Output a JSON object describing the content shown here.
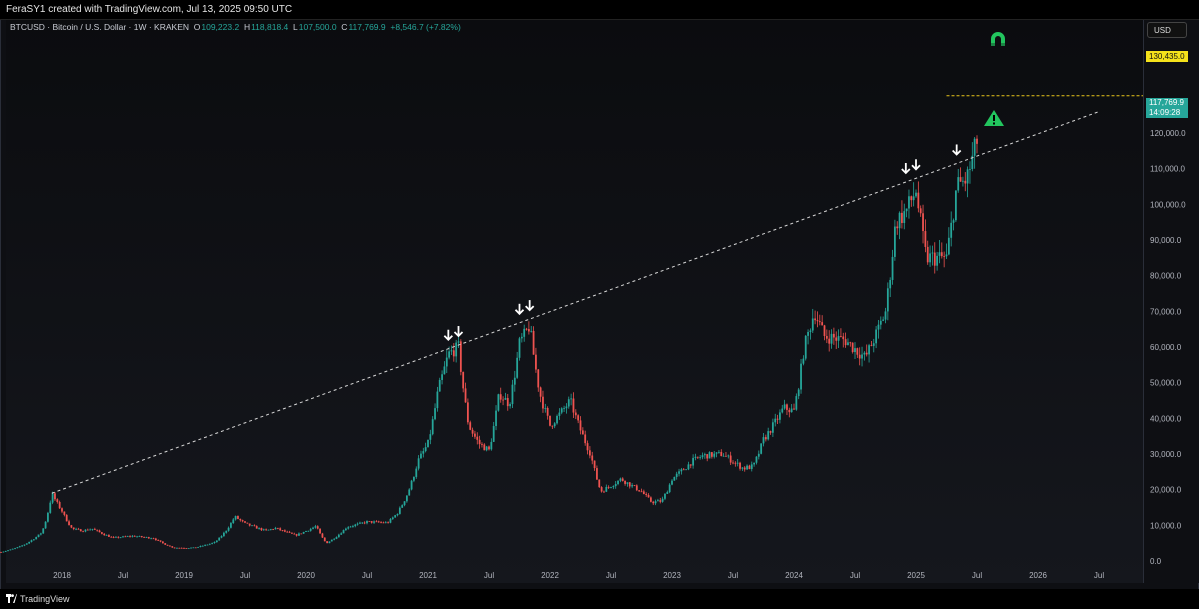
{
  "header": {
    "caption": "FeraSY1 created with TradingView.com, Jul 13, 2025 09:50 UTC"
  },
  "symbol": {
    "title": "BTCUSD · Bitcoin / U.S. Dollar · 1W · KRAKEN",
    "o_label": "O",
    "o_value": "109,223.2",
    "h_label": "H",
    "h_value": "118,818.4",
    "l_label": "L",
    "l_value": "107,500.0",
    "c_label": "C",
    "c_value": "117,769.9",
    "change": "+8,546.7 (+7.82%)"
  },
  "currency_button": "USD",
  "price_labels": {
    "target": "130,435.0",
    "last_price": "117,769.9",
    "countdown": "14:09:28"
  },
  "footer": {
    "brand": "TradingView"
  },
  "colors": {
    "up": "#26a69a",
    "down": "#ef5350",
    "target_line": "#e8c51a",
    "trendline": "#d8d8d8",
    "arrow": "#ffffff",
    "alert_green": "#22c55e"
  },
  "icons": [
    "magnet-icon",
    "warning-triangle-icon",
    "down-arrow-icon",
    "tradingview-logo-icon"
  ],
  "chart_data": {
    "type": "candlestick",
    "interval": "1W",
    "ylim": [
      0,
      130000
    ],
    "y_ticks": [
      {
        "value": 0,
        "label": "0.0"
      },
      {
        "value": 10000,
        "label": "10,000.0"
      },
      {
        "value": 20000,
        "label": "20,000.0"
      },
      {
        "value": 30000,
        "label": "30,000.0"
      },
      {
        "value": 40000,
        "label": "40,000.0"
      },
      {
        "value": 50000,
        "label": "50,000.0"
      },
      {
        "value": 60000,
        "label": "60,000.0"
      },
      {
        "value": 70000,
        "label": "70,000.0"
      },
      {
        "value": 80000,
        "label": "80,000.0"
      },
      {
        "value": 90000,
        "label": "90,000.0"
      },
      {
        "value": 100000,
        "label": "100,000.0"
      },
      {
        "value": 110000,
        "label": "110,000.0"
      },
      {
        "value": 120000,
        "label": "120,000.0"
      }
    ],
    "x_ticks": [
      {
        "date": "2018-01",
        "label": "2018"
      },
      {
        "date": "2018-07",
        "label": "Jul"
      },
      {
        "date": "2019-01",
        "label": "2019"
      },
      {
        "date": "2019-07",
        "label": "Jul"
      },
      {
        "date": "2020-01",
        "label": "2020"
      },
      {
        "date": "2020-07",
        "label": "Jul"
      },
      {
        "date": "2021-01",
        "label": "2021"
      },
      {
        "date": "2021-07",
        "label": "Jul"
      },
      {
        "date": "2022-01",
        "label": "2022"
      },
      {
        "date": "2022-07",
        "label": "Jul"
      },
      {
        "date": "2023-01",
        "label": "2023"
      },
      {
        "date": "2023-07",
        "label": "Jul"
      },
      {
        "date": "2024-01",
        "label": "2024"
      },
      {
        "date": "2024-07",
        "label": "Jul"
      },
      {
        "date": "2025-01",
        "label": "2025"
      },
      {
        "date": "2025-07",
        "label": "Jul"
      },
      {
        "date": "2026-01",
        "label": "2026"
      },
      {
        "date": "2026-07",
        "label": "Jul"
      }
    ],
    "x_range": [
      "2017-07",
      "2026-12"
    ],
    "price_path": [
      [
        "2017-07",
        2500
      ],
      [
        "2017-09",
        4200
      ],
      [
        "2017-11",
        8000
      ],
      [
        "2017-12",
        19000
      ],
      [
        "2018-01",
        14000
      ],
      [
        "2018-02",
        9000
      ],
      [
        "2018-03",
        8500
      ],
      [
        "2018-04",
        9000
      ],
      [
        "2018-06",
        6500
      ],
      [
        "2018-08",
        7000
      ],
      [
        "2018-10",
        6400
      ],
      [
        "2018-12",
        3700
      ],
      [
        "2019-02",
        3700
      ],
      [
        "2019-04",
        5200
      ],
      [
        "2019-06",
        12500
      ],
      [
        "2019-07",
        10500
      ],
      [
        "2019-09",
        8500
      ],
      [
        "2019-10",
        9200
      ],
      [
        "2019-12",
        7200
      ],
      [
        "2020-02",
        9800
      ],
      [
        "2020-03",
        5000
      ],
      [
        "2020-05",
        9500
      ],
      [
        "2020-07",
        11000
      ],
      [
        "2020-09",
        10700
      ],
      [
        "2020-10",
        13500
      ],
      [
        "2020-11",
        19000
      ],
      [
        "2020-12",
        28000
      ],
      [
        "2021-01",
        33000
      ],
      [
        "2021-02",
        48000
      ],
      [
        "2021-03",
        58000
      ],
      [
        "2021-04",
        60000
      ],
      [
        "2021-05",
        38000
      ],
      [
        "2021-06",
        33000
      ],
      [
        "2021-07",
        31000
      ],
      [
        "2021-08",
        47000
      ],
      [
        "2021-09",
        44000
      ],
      [
        "2021-10",
        61000
      ],
      [
        "2021-11",
        66000
      ],
      [
        "2021-12",
        47000
      ],
      [
        "2022-01",
        38000
      ],
      [
        "2022-03",
        45000
      ],
      [
        "2022-05",
        30000
      ],
      [
        "2022-06",
        19500
      ],
      [
        "2022-08",
        23000
      ],
      [
        "2022-10",
        19500
      ],
      [
        "2022-11",
        16500
      ],
      [
        "2022-12",
        16800
      ],
      [
        "2023-01",
        23000
      ],
      [
        "2023-03",
        28000
      ],
      [
        "2023-04",
        29500
      ],
      [
        "2023-06",
        30000
      ],
      [
        "2023-08",
        26000
      ],
      [
        "2023-09",
        26500
      ],
      [
        "2023-10",
        34000
      ],
      [
        "2023-12",
        43000
      ],
      [
        "2024-01",
        42000
      ],
      [
        "2024-02",
        60000
      ],
      [
        "2024-03",
        70000
      ],
      [
        "2024-04",
        63000
      ],
      [
        "2024-06",
        62000
      ],
      [
        "2024-08",
        57000
      ],
      [
        "2024-09",
        63000
      ],
      [
        "2024-10",
        70000
      ],
      [
        "2024-11",
        95000
      ],
      [
        "2024-12",
        98000
      ],
      [
        "2025-01",
        104000
      ],
      [
        "2025-02",
        85000
      ],
      [
        "2025-04",
        85000
      ],
      [
        "2025-05",
        105000
      ],
      [
        "2025-06",
        107000
      ],
      [
        "2025-07",
        117769.9
      ]
    ],
    "trendline": {
      "from": {
        "date": "2017-12",
        "value": 19000
      },
      "to": {
        "date": "2026-07",
        "value": 126000
      },
      "style": "dashed"
    },
    "horizontal_line": {
      "value": 130435.0,
      "label": "130,435.0",
      "from_date": "2025-04"
    },
    "touch_markers": [
      "2021-03",
      "2021-04",
      "2021-10",
      "2021-11",
      "2024-12",
      "2025-01",
      "2025-05"
    ],
    "alert_marker": {
      "date": "2025-08",
      "value": 113500
    }
  }
}
